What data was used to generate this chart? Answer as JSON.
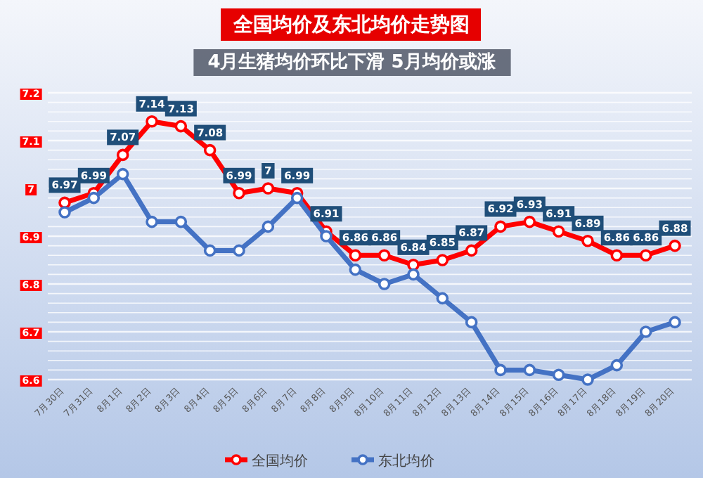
{
  "chart_data": {
    "type": "line",
    "title": "全国均价及东北均价走势图",
    "subtitle": "4月生猪均价环比下滑 5月均价或涨",
    "categories": [
      "7月30日",
      "7月31日",
      "8月1日",
      "8月2日",
      "8月3日",
      "8月4日",
      "8月5日",
      "8月6日",
      "8月7日",
      "8月8日",
      "8月9日",
      "8月10日",
      "8月11日",
      "8月12日",
      "8月13日",
      "8月14日",
      "8月15日",
      "8月16日",
      "8月17日",
      "8月18日",
      "8月19日",
      "8月20日"
    ],
    "series": [
      {
        "name": "全国均价",
        "color": "#ff0000",
        "values": [
          6.97,
          6.99,
          7.07,
          7.14,
          7.13,
          7.08,
          6.99,
          7,
          6.99,
          6.91,
          6.86,
          6.86,
          6.84,
          6.85,
          6.87,
          6.92,
          6.93,
          6.91,
          6.89,
          6.86,
          6.86,
          6.88
        ],
        "value_labels": [
          "6.97",
          "6.99",
          "7.07",
          "7.14",
          "7.13",
          "7.08",
          "6.99",
          "7",
          "6.99",
          "6.91",
          "6.86",
          "6.86",
          "6.84",
          "6.85",
          "6.87",
          "6.92",
          "6.93",
          "6.91",
          "6.89",
          "6.86",
          "6.86",
          "6.88"
        ]
      },
      {
        "name": "东北均价",
        "color": "#4472c4",
        "values": [
          6.95,
          6.98,
          7.03,
          6.93,
          6.93,
          6.87,
          6.87,
          6.92,
          6.98,
          6.9,
          6.83,
          6.8,
          6.82,
          6.77,
          6.72,
          6.62,
          6.62,
          6.61,
          6.6,
          6.63,
          6.7,
          6.72
        ]
      }
    ],
    "ylim": [
      6.6,
      7.2
    ],
    "yticks": [
      6.6,
      {
        "value": 6.62,
        "label": null
      },
      {
        "value": 6.64,
        "label": null
      },
      {
        "value": 6.66,
        "label": null
      },
      {
        "value": 6.68,
        "label": null
      },
      6.7,
      {
        "value": 6.72,
        "label": null
      },
      {
        "value": 6.74,
        "label": null
      },
      {
        "value": 6.76,
        "label": null
      },
      {
        "value": 6.78,
        "label": null
      },
      6.8,
      {
        "value": 6.82,
        "label": null
      },
      {
        "value": 6.84,
        "label": null
      },
      {
        "value": 6.86,
        "label": null
      },
      {
        "value": 6.88,
        "label": null
      },
      6.9,
      {
        "value": 6.92,
        "label": null
      },
      {
        "value": 6.94,
        "label": null
      },
      {
        "value": 6.96,
        "label": null
      },
      {
        "value": 6.98,
        "label": null
      },
      7,
      {
        "value": 7.02,
        "label": null
      },
      {
        "value": 7.04,
        "label": null
      },
      {
        "value": 7.06,
        "label": null
      },
      {
        "value": 7.08,
        "label": null
      },
      7.1,
      {
        "value": 7.12,
        "label": null
      },
      {
        "value": 7.14,
        "label": null
      },
      {
        "value": 7.16,
        "label": null
      },
      {
        "value": 7.18,
        "label": null
      },
      7.2
    ],
    "grid": "y",
    "legend": "bottom",
    "marker": "circle",
    "line_style": "solid"
  }
}
